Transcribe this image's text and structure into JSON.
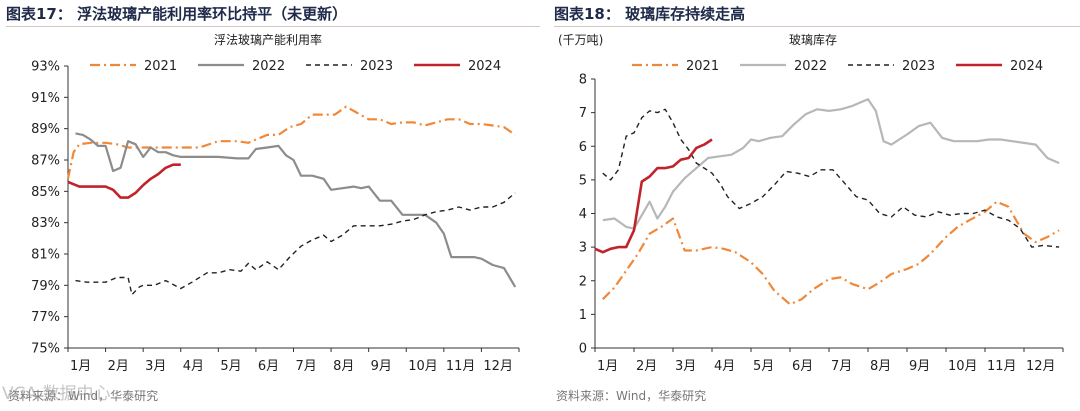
{
  "colors": {
    "y2021": "#f0883a",
    "y2022": "#8c8c8c",
    "y2022_right": "#b7b7b7",
    "y2023": "#222222",
    "y2024": "#c0232b"
  },
  "watermark": "VCA 数据中心",
  "chart_data": [
    {
      "type": "line",
      "fig_title": "图表17： 浮法玻璃产能利用率环比持平（未更新）",
      "title": "浮法玻璃产能利用率",
      "unit": "",
      "source": "资料来源：Wind，华泰研究",
      "xlabel": "",
      "ylabel": "",
      "ylim": [
        75,
        93
      ],
      "yticks": [
        75,
        77,
        79,
        81,
        83,
        85,
        87,
        89,
        91,
        93
      ],
      "ytick_labels": [
        "75%",
        "77%",
        "79%",
        "81%",
        "83%",
        "85%",
        "87%",
        "89%",
        "91%",
        "93%"
      ],
      "xlim": [
        1,
        13
      ],
      "xticks": [
        1,
        2,
        3,
        4,
        5,
        6,
        7,
        8,
        9,
        10,
        11,
        12
      ],
      "xtick_labels": [
        "1月",
        "2月",
        "3月",
        "4月",
        "5月",
        "6月",
        "7月",
        "8月",
        "9月",
        "10月",
        "11月",
        "12月"
      ],
      "legend": [
        "2021",
        "2022",
        "2023",
        "2024"
      ],
      "series": [
        {
          "name": "2021",
          "key": "y2021",
          "dash": "dashdot",
          "x": [
            1.0,
            1.15,
            1.3,
            1.6,
            2.0,
            2.3,
            2.6,
            3.0,
            3.5,
            4.0,
            4.5,
            5.0,
            5.5,
            5.8,
            6.0,
            6.3,
            6.6,
            6.9,
            7.2,
            7.5,
            7.8,
            8.1,
            8.4,
            8.7,
            9.0,
            9.3,
            9.6,
            9.9,
            10.2,
            10.5,
            10.8,
            11.1,
            11.4,
            11.7,
            12.0,
            12.3,
            12.6,
            12.9
          ],
          "y": [
            85.8,
            87.5,
            88.0,
            88.1,
            88.1,
            88.0,
            87.8,
            87.8,
            87.8,
            87.8,
            87.8,
            88.2,
            88.2,
            88.1,
            88.3,
            88.6,
            88.6,
            89.1,
            89.3,
            89.9,
            89.9,
            89.9,
            90.4,
            90.0,
            89.6,
            89.6,
            89.3,
            89.4,
            89.4,
            89.2,
            89.4,
            89.6,
            89.6,
            89.3,
            89.3,
            89.2,
            89.1,
            88.6
          ]
        },
        {
          "name": "2022",
          "key": "y2022",
          "dash": "solid",
          "x": [
            1.2,
            1.4,
            1.6,
            1.8,
            2.0,
            2.2,
            2.4,
            2.6,
            2.8,
            3.0,
            3.2,
            3.4,
            3.6,
            3.8,
            4.0,
            4.2,
            4.5,
            5.0,
            5.5,
            5.8,
            6.0,
            6.3,
            6.6,
            6.8,
            7.0,
            7.2,
            7.5,
            7.8,
            8.0,
            8.3,
            8.6,
            8.8,
            9.0,
            9.3,
            9.6,
            9.9,
            10.2,
            10.5,
            10.8,
            11.0,
            11.2,
            11.5,
            11.8,
            12.0,
            12.3,
            12.6,
            12.9
          ],
          "y": [
            88.7,
            88.6,
            88.3,
            87.9,
            87.9,
            86.3,
            86.5,
            88.2,
            88.0,
            87.2,
            87.8,
            87.5,
            87.5,
            87.3,
            87.2,
            87.2,
            87.2,
            87.2,
            87.1,
            87.1,
            87.7,
            87.8,
            87.9,
            87.3,
            87.0,
            86.0,
            86.0,
            85.8,
            85.1,
            85.2,
            85.3,
            85.2,
            85.3,
            84.4,
            84.4,
            83.5,
            83.5,
            83.5,
            83.0,
            82.3,
            80.8,
            80.8,
            80.8,
            80.7,
            80.3,
            80.1,
            78.9
          ]
        },
        {
          "name": "2023",
          "key": "y2023",
          "dash": "dashed",
          "x": [
            1.2,
            1.5,
            1.8,
            2.0,
            2.3,
            2.6,
            2.7,
            2.9,
            3.0,
            3.3,
            3.6,
            4.0,
            4.3,
            4.7,
            5.0,
            5.3,
            5.6,
            5.8,
            6.0,
            6.3,
            6.6,
            6.9,
            7.2,
            7.5,
            7.8,
            8.0,
            8.3,
            8.6,
            9.0,
            9.3,
            9.6,
            9.9,
            10.2,
            10.5,
            10.8,
            11.1,
            11.4,
            11.7,
            12.0,
            12.3,
            12.6,
            12.9
          ],
          "y": [
            79.3,
            79.2,
            79.2,
            79.2,
            79.5,
            79.5,
            78.4,
            78.9,
            79.0,
            79.0,
            79.3,
            78.8,
            79.2,
            79.8,
            79.8,
            80.0,
            79.9,
            80.4,
            80.0,
            80.5,
            80.0,
            80.8,
            81.5,
            81.9,
            82.2,
            81.8,
            82.2,
            82.8,
            82.8,
            82.8,
            82.9,
            83.1,
            83.2,
            83.5,
            83.7,
            83.8,
            84.0,
            83.8,
            84.0,
            84.0,
            84.3,
            84.9
          ]
        },
        {
          "name": "2024",
          "key": "y2024",
          "dash": "solid",
          "x": [
            1.0,
            1.3,
            1.6,
            2.0,
            2.2,
            2.4,
            2.6,
            2.8,
            3.0,
            3.2,
            3.4,
            3.6,
            3.8,
            4.0
          ],
          "y": [
            85.6,
            85.3,
            85.3,
            85.3,
            85.1,
            84.6,
            84.6,
            84.9,
            85.4,
            85.8,
            86.1,
            86.5,
            86.7,
            86.7
          ]
        }
      ]
    },
    {
      "type": "line",
      "fig_title": "图表18： 玻璃库存持续走高",
      "title": "玻璃库存",
      "unit": "(千万吨)",
      "source": "资料来源：Wind，华泰研究",
      "xlabel": "",
      "ylabel": "千万吨",
      "ylim": [
        0,
        8
      ],
      "yticks": [
        0,
        1,
        2,
        3,
        4,
        5,
        6,
        7,
        8
      ],
      "ytick_labels": [
        "0",
        "1",
        "2",
        "3",
        "4",
        "5",
        "6",
        "7",
        "8"
      ],
      "xlim": [
        1,
        13
      ],
      "xticks": [
        1,
        2,
        3,
        4,
        5,
        6,
        7,
        8,
        9,
        10,
        11,
        12
      ],
      "xtick_labels": [
        "1月",
        "2月",
        "3月",
        "4月",
        "5月",
        "6月",
        "7月",
        "8月",
        "9月",
        "10月",
        "11月",
        "12月"
      ],
      "legend": [
        "2021",
        "2022",
        "2023",
        "2024"
      ],
      "series": [
        {
          "name": "2021",
          "key": "y2021",
          "dash": "dashdot",
          "x": [
            1.2,
            1.5,
            1.8,
            2.1,
            2.4,
            2.7,
            3.0,
            3.3,
            3.6,
            4.0,
            4.3,
            4.6,
            5.0,
            5.3,
            5.6,
            6.0,
            6.3,
            6.6,
            7.0,
            7.3,
            7.6,
            8.0,
            8.3,
            8.6,
            9.0,
            9.3,
            9.6,
            10.0,
            10.3,
            10.6,
            11.0,
            11.3,
            11.6,
            12.0,
            12.3,
            12.6,
            12.9
          ],
          "y": [
            1.45,
            1.8,
            2.3,
            2.8,
            3.4,
            3.6,
            3.85,
            2.9,
            2.9,
            3.0,
            2.95,
            2.85,
            2.55,
            2.2,
            1.7,
            1.3,
            1.45,
            1.75,
            2.05,
            2.1,
            1.9,
            1.75,
            1.95,
            2.2,
            2.35,
            2.5,
            2.8,
            3.3,
            3.6,
            3.8,
            4.05,
            4.35,
            4.2,
            3.4,
            3.15,
            3.3,
            3.5
          ]
        },
        {
          "name": "2022",
          "key": "y2022",
          "dash": "solid",
          "x": [
            1.2,
            1.5,
            1.8,
            2.0,
            2.2,
            2.4,
            2.6,
            2.8,
            3.0,
            3.3,
            3.6,
            3.9,
            4.2,
            4.5,
            4.8,
            5.0,
            5.2,
            5.5,
            5.8,
            6.1,
            6.4,
            6.7,
            7.0,
            7.3,
            7.6,
            7.9,
            8.0,
            8.2,
            8.4,
            8.6,
            8.8,
            9.0,
            9.3,
            9.6,
            9.9,
            10.2,
            10.5,
            10.8,
            11.1,
            11.4,
            11.7,
            12.0,
            12.3,
            12.6,
            12.9
          ],
          "y": [
            3.8,
            3.85,
            3.6,
            3.55,
            3.95,
            4.35,
            3.85,
            4.2,
            4.65,
            5.05,
            5.35,
            5.65,
            5.7,
            5.75,
            5.95,
            6.2,
            6.15,
            6.25,
            6.3,
            6.65,
            6.95,
            7.1,
            7.05,
            7.1,
            7.2,
            7.35,
            7.4,
            7.05,
            6.15,
            6.05,
            6.2,
            6.35,
            6.6,
            6.7,
            6.25,
            6.15,
            6.15,
            6.15,
            6.2,
            6.2,
            6.15,
            6.1,
            6.05,
            5.65,
            5.5
          ]
        },
        {
          "name": "2023",
          "key": "y2023",
          "dash": "dashed",
          "x": [
            1.2,
            1.4,
            1.6,
            1.8,
            2.0,
            2.2,
            2.4,
            2.6,
            2.8,
            3.0,
            3.2,
            3.4,
            3.6,
            3.8,
            4.0,
            4.2,
            4.4,
            4.7,
            5.0,
            5.3,
            5.6,
            5.9,
            6.2,
            6.5,
            6.8,
            7.1,
            7.4,
            7.7,
            8.0,
            8.3,
            8.6,
            8.9,
            9.2,
            9.5,
            9.8,
            10.1,
            10.4,
            10.7,
            11.0,
            11.3,
            11.6,
            11.9,
            12.2,
            12.5,
            12.9
          ],
          "y": [
            5.2,
            5.0,
            5.3,
            6.3,
            6.4,
            6.85,
            7.05,
            7.0,
            7.1,
            6.7,
            6.2,
            5.9,
            5.5,
            5.35,
            5.2,
            4.9,
            4.5,
            4.15,
            4.3,
            4.5,
            4.85,
            5.25,
            5.2,
            5.1,
            5.3,
            5.3,
            4.9,
            4.5,
            4.4,
            4.0,
            3.9,
            4.2,
            3.95,
            3.9,
            4.05,
            3.95,
            4.0,
            4.0,
            4.1,
            3.9,
            3.8,
            3.55,
            3.0,
            3.05,
            3.0
          ]
        },
        {
          "name": "2024",
          "key": "y2024",
          "dash": "solid",
          "x": [
            1.0,
            1.2,
            1.4,
            1.6,
            1.8,
            2.0,
            2.2,
            2.4,
            2.6,
            2.8,
            3.0,
            3.2,
            3.4,
            3.6,
            3.8,
            4.0
          ],
          "y": [
            2.95,
            2.85,
            2.95,
            3.0,
            3.0,
            3.5,
            4.95,
            5.1,
            5.35,
            5.35,
            5.4,
            5.6,
            5.65,
            5.95,
            6.05,
            6.2
          ]
        }
      ]
    }
  ]
}
